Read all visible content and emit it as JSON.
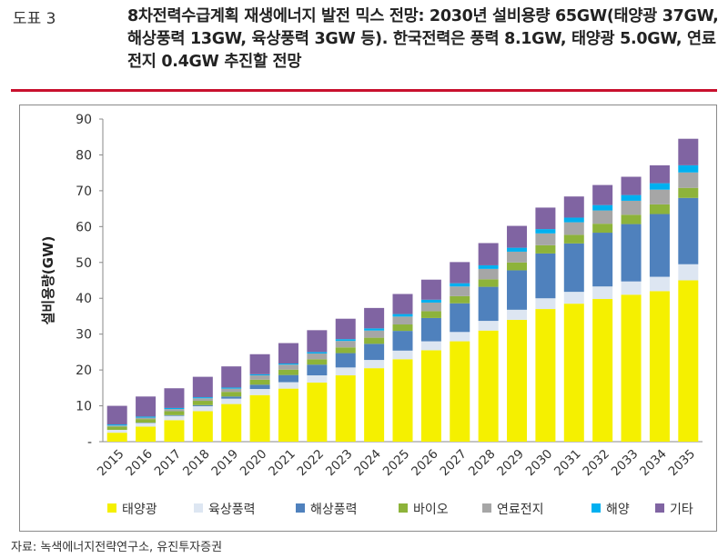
{
  "header": {
    "fig_label": "도표 3",
    "title": "8차전력수급계획 재생에너지 발전 믹스 전망: 2030년 설비용량 65GW(태양광 37GW, 해상풍력 13GW, 육상풍력 3GW 등). 한국전력은 풍력 8.1GW, 태양광 5.0GW, 연료전지 0.4GW 추진할 전망"
  },
  "source": "자료: 녹색에너지전략연구소, 유진투자증권",
  "chart_data": {
    "type": "bar",
    "stacked": true,
    "title": "",
    "xlabel": "",
    "ylabel": "설비용량(GW)",
    "ylim": [
      0,
      90
    ],
    "yticks": [
      "-",
      "10",
      "20",
      "30",
      "40",
      "50",
      "60",
      "70",
      "80",
      "90"
    ],
    "categories": [
      "2015",
      "2016",
      "2017",
      "2018",
      "2019",
      "2020",
      "2021",
      "2022",
      "2023",
      "2024",
      "2025",
      "2026",
      "2027",
      "2028",
      "2029",
      "2030",
      "2031",
      "2032",
      "2033",
      "2034",
      "2035"
    ],
    "legend_position": "bottom",
    "series": [
      {
        "name": "태양광",
        "color": "#f5f000",
        "values": [
          2.5,
          4.2,
          6.0,
          8.5,
          10.5,
          13.0,
          14.8,
          16.5,
          18.5,
          20.5,
          23.0,
          25.5,
          28.0,
          31.0,
          34.0,
          37.0,
          38.5,
          39.8,
          41.0,
          42.0,
          45.0
        ]
      },
      {
        "name": "육상풍력",
        "color": "#dde6f2",
        "values": [
          0.8,
          1.0,
          1.2,
          1.4,
          1.5,
          1.7,
          1.8,
          2.0,
          2.2,
          2.3,
          2.4,
          2.5,
          2.6,
          2.7,
          2.8,
          3.0,
          3.3,
          3.5,
          3.7,
          4.0,
          4.5
        ]
      },
      {
        "name": "해상풍력",
        "color": "#4f81bd",
        "values": [
          0.0,
          0.1,
          0.2,
          0.3,
          0.6,
          1.2,
          2.0,
          3.0,
          4.0,
          4.5,
          5.5,
          6.5,
          8.0,
          9.5,
          11.0,
          12.5,
          13.5,
          15.0,
          16.0,
          17.5,
          18.5
        ]
      },
      {
        "name": "바이오",
        "color": "#8db33a",
        "values": [
          0.9,
          1.0,
          1.1,
          1.2,
          1.3,
          1.4,
          1.5,
          1.5,
          1.6,
          1.7,
          1.8,
          1.9,
          2.0,
          2.1,
          2.2,
          2.3,
          2.4,
          2.5,
          2.6,
          2.7,
          2.8
        ]
      },
      {
        "name": "연료전지",
        "color": "#a6a6a6",
        "values": [
          0.3,
          0.4,
          0.6,
          0.7,
          0.9,
          1.2,
          1.4,
          1.6,
          1.8,
          2.0,
          2.2,
          2.4,
          2.7,
          2.9,
          3.0,
          3.3,
          3.5,
          3.7,
          3.9,
          4.1,
          4.3
        ]
      },
      {
        "name": "해양",
        "color": "#00b0f0",
        "values": [
          0.3,
          0.3,
          0.3,
          0.3,
          0.3,
          0.3,
          0.3,
          0.4,
          0.5,
          0.6,
          0.7,
          0.8,
          0.9,
          1.0,
          1.1,
          1.2,
          1.3,
          1.5,
          1.6,
          1.8,
          2.0
        ]
      },
      {
        "name": "기타",
        "color": "#8064a2",
        "values": [
          5.2,
          5.6,
          5.5,
          5.7,
          5.9,
          5.6,
          5.7,
          6.1,
          5.7,
          5.7,
          5.6,
          5.6,
          5.9,
          6.2,
          6.1,
          6.0,
          5.9,
          5.6,
          5.1,
          5.0,
          7.4
        ]
      }
    ]
  }
}
